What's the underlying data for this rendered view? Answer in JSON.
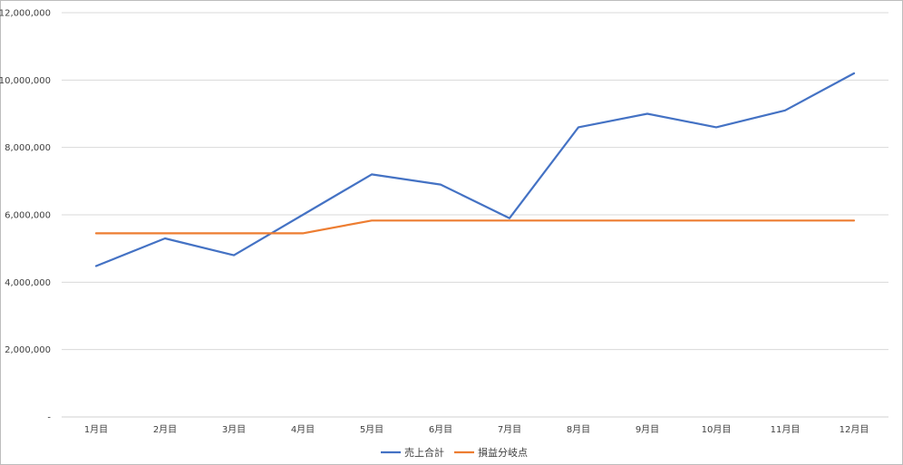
{
  "chart_data": {
    "type": "line",
    "title": "",
    "xlabel": "",
    "ylabel": "",
    "categories": [
      "1月目",
      "2月目",
      "3月目",
      "4月目",
      "5月目",
      "6月目",
      "7月目",
      "8月目",
      "9月目",
      "10月目",
      "11月目",
      "12月目"
    ],
    "ylim": [
      0,
      12000000
    ],
    "yticks": [
      0,
      2000000,
      4000000,
      6000000,
      8000000,
      10000000,
      12000000
    ],
    "ytick_labels": [
      "-",
      "2,000,000",
      "4,000,000",
      "6,000,000",
      "8,000,000",
      "10,000,000",
      "12,000,000"
    ],
    "grid": true,
    "legend_position": "bottom",
    "series": [
      {
        "name": "売上合計",
        "color": "#4472C4",
        "values": [
          4480000,
          5300000,
          4800000,
          6000000,
          7200000,
          6900000,
          5900000,
          8600000,
          9000000,
          8600000,
          9100000,
          10200000
        ]
      },
      {
        "name": "損益分岐点",
        "color": "#ED7D31",
        "values": [
          5450000,
          5450000,
          5450000,
          5450000,
          5830000,
          5830000,
          5830000,
          5830000,
          5830000,
          5830000,
          5830000,
          5830000
        ]
      }
    ]
  }
}
